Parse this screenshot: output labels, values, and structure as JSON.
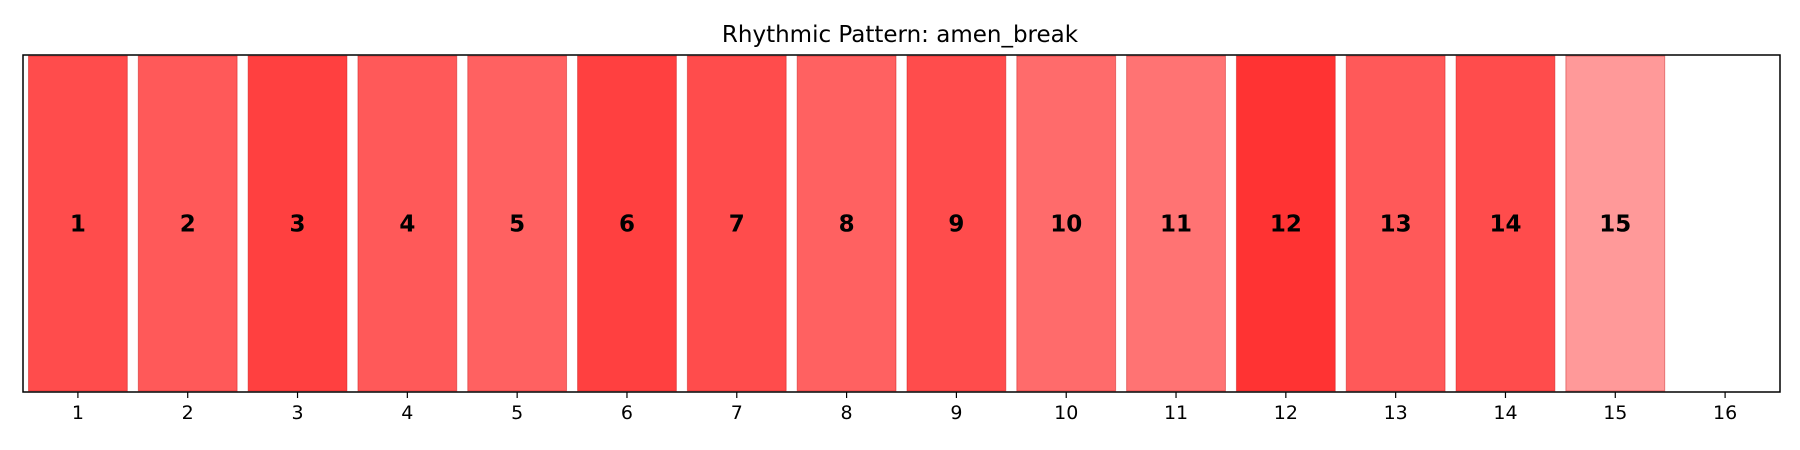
{
  "chart_data": {
    "type": "bar",
    "title": "Rhythmic Pattern: amen_break",
    "xlabel": "",
    "ylabel": "",
    "x_ticks": [
      "1",
      "2",
      "3",
      "4",
      "5",
      "6",
      "7",
      "8",
      "9",
      "10",
      "11",
      "12",
      "13",
      "14",
      "15",
      "16"
    ],
    "categories": [
      "1",
      "2",
      "3",
      "4",
      "5",
      "6",
      "7",
      "8",
      "9",
      "10",
      "11",
      "12",
      "13",
      "14",
      "15",
      "16"
    ],
    "bar_labels": [
      "1",
      "2",
      "3",
      "4",
      "5",
      "6",
      "7",
      "8",
      "9",
      "10",
      "11",
      "12",
      "13",
      "14",
      "15",
      ""
    ],
    "active": [
      1,
      1,
      1,
      1,
      1,
      1,
      1,
      1,
      1,
      1,
      1,
      1,
      1,
      1,
      1,
      0
    ],
    "intensity": [
      0.7,
      0.65,
      0.75,
      0.65,
      0.62,
      0.75,
      0.7,
      0.62,
      0.7,
      0.58,
      0.55,
      0.8,
      0.65,
      0.7,
      0.4,
      0.0
    ],
    "color": "#ff0000",
    "grid": false,
    "legend": "none"
  }
}
